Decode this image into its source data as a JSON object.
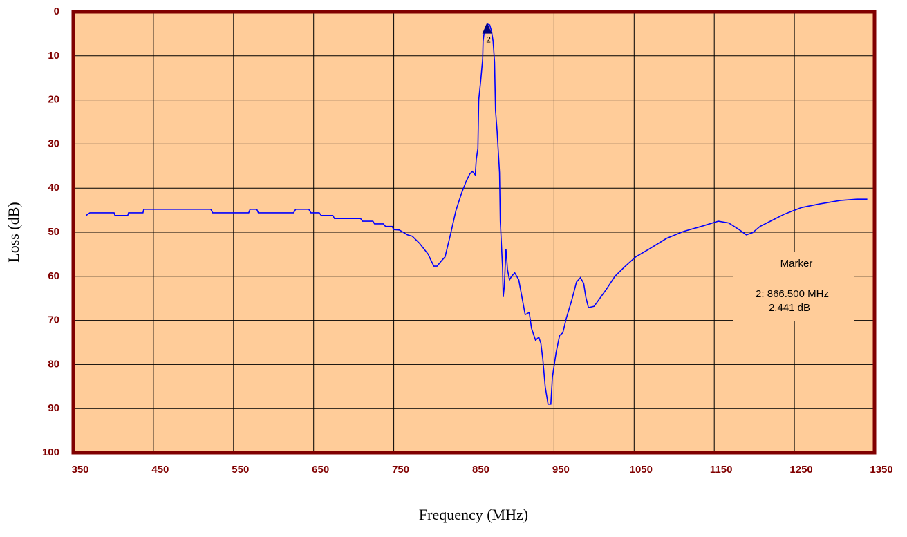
{
  "chart_data": {
    "type": "line",
    "xlabel": "Frequency (MHz)",
    "ylabel": "Loss (dB)",
    "xlim": [
      350,
      1350
    ],
    "xticks": [
      350,
      450,
      550,
      650,
      750,
      850,
      950,
      1050,
      1150,
      1250,
      1350
    ],
    "ylim": [
      100,
      0
    ],
    "yticks": [
      0,
      10,
      20,
      30,
      40,
      50,
      60,
      70,
      80,
      90,
      100
    ],
    "grid": true,
    "series": [
      {
        "color": "#0000ff",
        "x": [
          366,
          370.7,
          400.9,
          402,
          418,
          419,
          437,
          438,
          521.6,
          524,
          569,
          570.7,
          579,
          581,
          625,
          627.6,
          644,
          646.6,
          657,
          659.5,
          674,
          676,
          708.6,
          711,
          724,
          726,
          737,
          739.7,
          748,
          750,
          757,
          767,
          773,
          782,
          793,
          797,
          800,
          804,
          810,
          814,
          820.7,
          827.6,
          834.5,
          840.5,
          844.8,
          848,
          851.7,
          853,
          855,
          856,
          858.6,
          861,
          861.5,
          863,
          865.6,
          867,
          869.8,
          872,
          874,
          875.8,
          877,
          879,
          882,
          883,
          885.8,
          886.6,
          888,
          890,
          891.9,
          894.4,
          897,
          901,
          906,
          910,
          914,
          919,
          922,
          927,
          931,
          933.6,
          936,
          939,
          942.6,
          946,
          948,
          952.6,
          957,
          961,
          965.5,
          972,
          978,
          983,
          987,
          989.7,
          993,
          1000,
          1015.5,
          1026,
          1039,
          1052,
          1069,
          1090.5,
          1112,
          1133.6,
          1155,
          1168,
          1181,
          1190,
          1198,
          1207,
          1220,
          1237.6,
          1259,
          1281,
          1307,
          1328,
          1341
        ],
        "values": [
          46.2,
          45.6,
          45.6,
          46.2,
          46.2,
          45.6,
          45.6,
          44.8,
          44.8,
          45.6,
          45.6,
          44.8,
          44.8,
          45.6,
          45.6,
          44.8,
          44.8,
          45.6,
          45.6,
          46.2,
          46.2,
          46.9,
          46.9,
          47.5,
          47.5,
          48.1,
          48.1,
          48.7,
          48.7,
          49.4,
          49.5,
          50.6,
          50.9,
          52.5,
          55,
          56.6,
          57.7,
          57.7,
          56.4,
          55.6,
          50.6,
          45.1,
          41.2,
          38.4,
          36.8,
          36.2,
          37,
          33.4,
          31,
          20,
          15.4,
          10.7,
          6.7,
          4.4,
          3.1,
          2.8,
          3,
          4.4,
          6.7,
          11.4,
          22.4,
          27.1,
          36.5,
          47.5,
          58.2,
          64.7,
          62.3,
          53.8,
          58.5,
          60.8,
          60,
          59.2,
          60.8,
          64.7,
          68.7,
          68.2,
          71.8,
          74.5,
          73.8,
          75.2,
          78.8,
          85.1,
          89,
          89,
          82.8,
          77.3,
          73.4,
          72.8,
          69.4,
          65.5,
          61.3,
          60.3,
          61.6,
          64.7,
          67.1,
          66.8,
          62.9,
          60,
          57.7,
          55.6,
          53.8,
          51.4,
          49.8,
          48.7,
          47.5,
          47.9,
          49.4,
          50.6,
          50.1,
          48.7,
          47.5,
          45.9,
          44.4,
          43.6,
          42.8,
          42.5,
          42.5
        ]
      }
    ],
    "marker": {
      "label": "2",
      "x": 866.5,
      "y": 2.441,
      "title": "Marker",
      "lines": [
        "2: 866.500 MHz",
        "2.441 dB"
      ]
    }
  }
}
